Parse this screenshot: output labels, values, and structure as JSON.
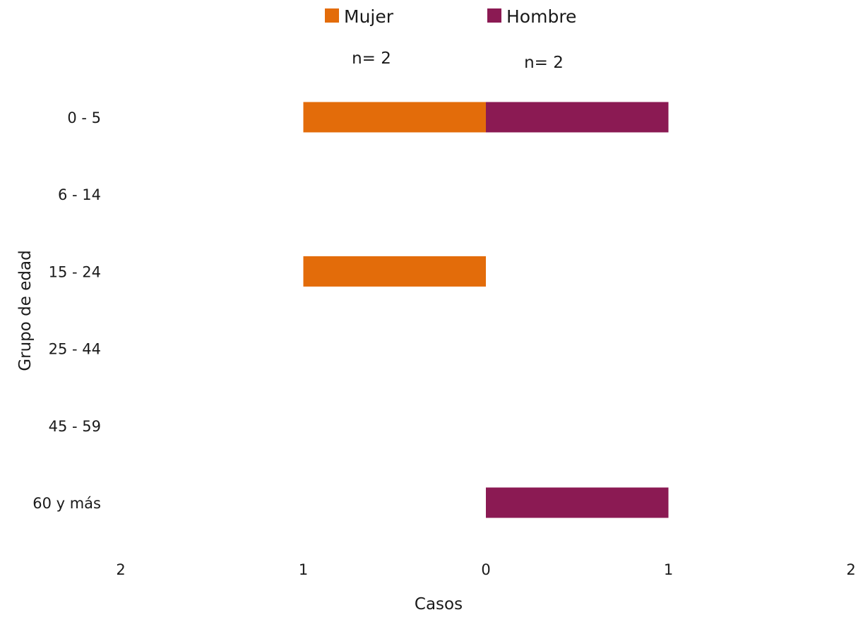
{
  "chart_data": {
    "type": "bar",
    "orientation": "horizontal",
    "categories": [
      "0 - 5",
      "6 - 14",
      "15 - 24",
      "25 - 44",
      "45 - 59",
      "60 y más"
    ],
    "series": [
      {
        "name": "Mujer",
        "color": "#E36C0A",
        "values": [
          1,
          0,
          1,
          0,
          0,
          0
        ],
        "direction": "left"
      },
      {
        "name": "Hombre",
        "color": "#8B1A53",
        "values": [
          1,
          0,
          0,
          0,
          0,
          1
        ],
        "direction": "right"
      }
    ],
    "annotations": [
      {
        "series": "Mujer",
        "text": "n= 2"
      },
      {
        "series": "Hombre",
        "text": "n= 2"
      }
    ],
    "xlabel": "Casos",
    "ylabel": "Grupo de edad",
    "xlim": [
      -2,
      2
    ],
    "xticks": [
      {
        "value": -2,
        "label": "2"
      },
      {
        "value": -1,
        "label": "1"
      },
      {
        "value": 0,
        "label": "0"
      },
      {
        "value": 1,
        "label": "1"
      },
      {
        "value": 2,
        "label": "2"
      }
    ],
    "grid": false,
    "legend_position": "top"
  }
}
